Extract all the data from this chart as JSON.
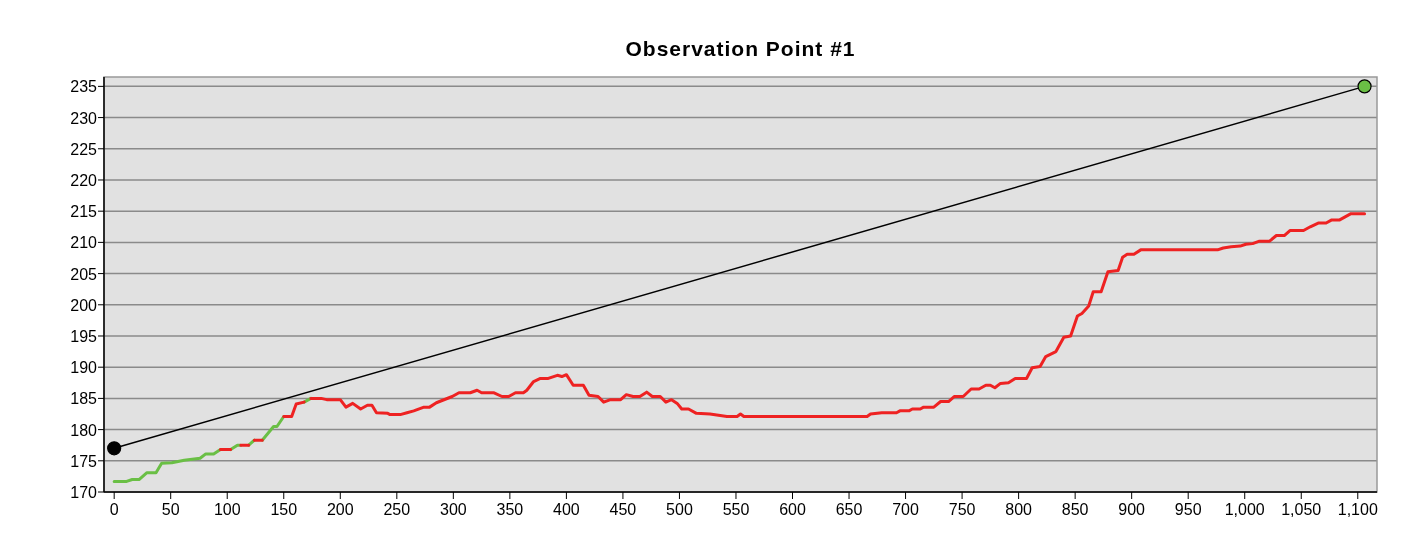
{
  "chart_data": {
    "type": "line",
    "title": "Observation Point #1",
    "xlim": [
      -9,
      1117
    ],
    "ylim": [
      170,
      236.5
    ],
    "xticks": [
      0,
      50,
      100,
      150,
      200,
      250,
      300,
      350,
      400,
      450,
      500,
      550,
      600,
      650,
      700,
      750,
      800,
      850,
      900,
      950,
      {
        "value": 1000,
        "label": "1,000"
      },
      {
        "value": 1050,
        "label": "1,050"
      },
      {
        "value": 1100,
        "label": "1,100"
      }
    ],
    "yticks": [
      170,
      175,
      180,
      185,
      190,
      195,
      200,
      205,
      210,
      215,
      220,
      225,
      230,
      235
    ],
    "grid": "y",
    "series": [
      {
        "color": "#6abf45",
        "x": [
          0,
          11,
          16,
          22,
          29,
          37,
          42,
          51,
          62,
          76,
          81,
          88,
          94,
          98,
          103,
          109,
          112,
          115,
          119,
          124,
          127,
          131,
          141,
          144,
          150,
          159,
          168,
          174
        ],
        "values": [
          171.7,
          171.7,
          172.0,
          172.0,
          173.1,
          173.1,
          174.6,
          174.7,
          175.1,
          175.4,
          176.1,
          176.1,
          176.8,
          null,
          176.8,
          177.5,
          177.5,
          null,
          177.5,
          178.3,
          null,
          178.3,
          180.5,
          180.5,
          182.1,
          null,
          184.4,
          185.0
        ]
      },
      {
        "color": "#ee2222",
        "x": [
          94,
          103,
          107,
          112,
          119,
          121,
          124,
          131,
          140,
          150,
          157,
          161,
          168,
          171,
          174,
          183,
          188,
          200,
          205,
          211,
          218,
          224,
          228,
          232,
          242,
          244,
          253,
          259,
          265,
          274,
          279,
          285,
          299,
          305,
          315,
          321,
          325,
          336,
          343,
          349,
          355,
          362,
          365,
          371,
          377,
          384,
          392,
          396,
          400,
          406,
          415,
          420,
          428,
          433,
          439,
          448,
          453,
          459,
          465,
          471,
          476,
          483,
          488,
          493,
          498,
          502,
          508,
          515,
          527,
          542,
          551,
          554,
          557,
          589,
          666,
          669,
          679,
          692,
          695,
          703,
          706,
          713,
          716,
          725,
          731,
          738,
          743,
          751,
          758,
          765,
          771,
          775,
          779,
          784,
          791,
          797,
          807,
          812,
          819,
          824,
          833,
          840,
          846,
          852,
          856,
          862,
          866,
          873,
          879,
          888,
          892,
          896,
          902,
          908,
          976,
          981,
          988,
          996,
          1001,
          1007,
          1013,
          1022,
          1028,
          1035,
          1040,
          1052,
          1058,
          1065,
          1072,
          1077,
          1084,
          1094,
          1106
        ],
        "values": [
          176.8,
          176.8,
          null,
          177.5,
          177.5,
          null,
          178.3,
          178.3,
          null,
          182.1,
          182.1,
          184.1,
          184.4,
          null,
          185.0,
          185.0,
          184.8,
          184.8,
          183.6,
          184.2,
          183.3,
          183.9,
          183.9,
          182.7,
          182.6,
          182.4,
          182.4,
          182.7,
          183.0,
          183.6,
          183.6,
          184.3,
          185.3,
          185.9,
          185.9,
          186.3,
          185.9,
          185.9,
          185.3,
          185.3,
          185.9,
          185.9,
          186.3,
          187.7,
          188.2,
          188.2,
          188.7,
          188.5,
          188.8,
          187.1,
          187.1,
          185.5,
          185.3,
          184.4,
          184.8,
          184.8,
          185.6,
          185.3,
          185.3,
          186.0,
          185.3,
          185.3,
          184.4,
          184.8,
          184.2,
          183.3,
          183.3,
          182.6,
          182.5,
          182.1,
          182.1,
          182.5,
          182.1,
          182.1,
          182.1,
          182.5,
          182.7,
          182.7,
          183.0,
          183.0,
          183.3,
          183.3,
          183.6,
          183.6,
          184.5,
          184.5,
          185.3,
          185.3,
          186.5,
          186.5,
          187.1,
          187.1,
          186.7,
          187.4,
          187.5,
          188.2,
          188.2,
          189.9,
          190.1,
          191.7,
          192.5,
          194.8,
          195.0,
          198.2,
          198.6,
          199.8,
          202.1,
          202.1,
          205.3,
          205.5,
          207.6,
          208.1,
          208.1,
          208.8,
          208.8,
          209.1,
          209.3,
          209.4,
          209.7,
          209.8,
          210.2,
          210.2,
          211.1,
          211.1,
          211.9,
          211.9,
          212.5,
          213.1,
          213.1,
          213.6,
          213.6,
          214.6,
          214.6
        ]
      },
      {
        "color": "#000000",
        "x": [
          0,
          1106
        ],
        "values": [
          177,
          235
        ],
        "marker": "circle",
        "colors": [
          "#000000",
          "#6abf45"
        ]
      }
    ]
  }
}
